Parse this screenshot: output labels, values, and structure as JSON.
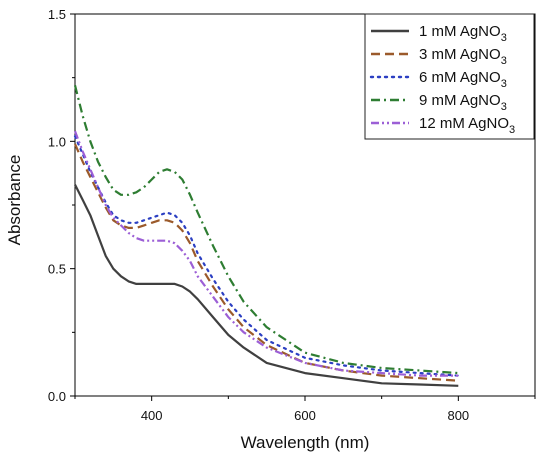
{
  "chart_data": {
    "type": "line",
    "xlabel": "Wavelength (nm)",
    "ylabel": "Absorbance",
    "xlim": [
      300,
      900
    ],
    "ylim": [
      0,
      1.5
    ],
    "xticks": [
      400,
      600,
      800
    ],
    "yticks": [
      0.0,
      0.5,
      1.0,
      1.5
    ],
    "tick_labels_x": [
      "400",
      "600",
      "800"
    ],
    "tick_labels_y": [
      "0.0",
      "0.5",
      "1.0",
      "1.5"
    ],
    "legend_position": "top-right",
    "grid": false,
    "series": [
      {
        "name": "1 mM AgNO3",
        "label_main": "1 mM AgNO",
        "label_sub": "3",
        "color": "#404040",
        "dash": "solid",
        "x": [
          300,
          310,
          320,
          330,
          340,
          350,
          360,
          370,
          380,
          390,
          400,
          410,
          420,
          430,
          440,
          450,
          460,
          480,
          500,
          520,
          550,
          600,
          650,
          700,
          750,
          800
        ],
        "y": [
          0.83,
          0.77,
          0.71,
          0.63,
          0.55,
          0.5,
          0.47,
          0.45,
          0.44,
          0.44,
          0.44,
          0.44,
          0.44,
          0.44,
          0.43,
          0.41,
          0.38,
          0.31,
          0.24,
          0.19,
          0.13,
          0.09,
          0.07,
          0.05,
          0.045,
          0.04
        ]
      },
      {
        "name": "3 mM AgNO3",
        "label_main": "3 mM AgNO",
        "label_sub": "3",
        "color": "#9b5a2b",
        "dash": "long-dash",
        "x": [
          300,
          310,
          320,
          330,
          340,
          350,
          360,
          370,
          380,
          390,
          400,
          410,
          420,
          430,
          440,
          450,
          460,
          480,
          500,
          520,
          550,
          600,
          650,
          700,
          750,
          800
        ],
        "y": [
          0.99,
          0.92,
          0.86,
          0.8,
          0.74,
          0.69,
          0.67,
          0.66,
          0.66,
          0.67,
          0.68,
          0.69,
          0.69,
          0.68,
          0.65,
          0.6,
          0.53,
          0.43,
          0.34,
          0.27,
          0.2,
          0.13,
          0.1,
          0.08,
          0.07,
          0.06
        ]
      },
      {
        "name": "6 mM AgNO3",
        "label_main": "6 mM AgNO",
        "label_sub": "3",
        "color": "#2b3fc2",
        "dash": "dot",
        "x": [
          300,
          310,
          320,
          330,
          340,
          350,
          360,
          370,
          380,
          390,
          400,
          410,
          420,
          430,
          440,
          450,
          460,
          480,
          500,
          520,
          550,
          600,
          650,
          700,
          750,
          800
        ],
        "y": [
          1.02,
          0.95,
          0.88,
          0.82,
          0.76,
          0.71,
          0.69,
          0.68,
          0.68,
          0.69,
          0.7,
          0.71,
          0.72,
          0.71,
          0.68,
          0.63,
          0.56,
          0.46,
          0.37,
          0.3,
          0.22,
          0.15,
          0.12,
          0.1,
          0.09,
          0.08
        ]
      },
      {
        "name": "9 mM AgNO3",
        "label_main": "9 mM AgNO",
        "label_sub": "3",
        "color": "#2e7d32",
        "dash": "dash-dot",
        "x": [
          300,
          310,
          320,
          330,
          340,
          350,
          360,
          370,
          380,
          390,
          400,
          410,
          420,
          430,
          440,
          450,
          460,
          480,
          500,
          520,
          550,
          600,
          650,
          700,
          750,
          800
        ],
        "y": [
          1.22,
          1.1,
          1.0,
          0.92,
          0.86,
          0.81,
          0.79,
          0.79,
          0.8,
          0.82,
          0.85,
          0.88,
          0.89,
          0.88,
          0.85,
          0.79,
          0.72,
          0.59,
          0.47,
          0.37,
          0.27,
          0.17,
          0.13,
          0.11,
          0.1,
          0.09
        ]
      },
      {
        "name": "12 mM AgNO3",
        "label_main": "12 mM AgNO",
        "label_sub": "3",
        "color": "#9c5fd6",
        "dash": "dash-dot-dot",
        "x": [
          300,
          310,
          320,
          330,
          340,
          350,
          360,
          370,
          380,
          390,
          400,
          410,
          420,
          430,
          440,
          450,
          460,
          480,
          500,
          520,
          550,
          600,
          650,
          700,
          750,
          800
        ],
        "y": [
          1.04,
          0.96,
          0.89,
          0.82,
          0.75,
          0.7,
          0.67,
          0.64,
          0.62,
          0.61,
          0.61,
          0.61,
          0.61,
          0.6,
          0.57,
          0.53,
          0.47,
          0.39,
          0.31,
          0.25,
          0.19,
          0.13,
          0.1,
          0.09,
          0.08,
          0.08
        ]
      }
    ]
  }
}
